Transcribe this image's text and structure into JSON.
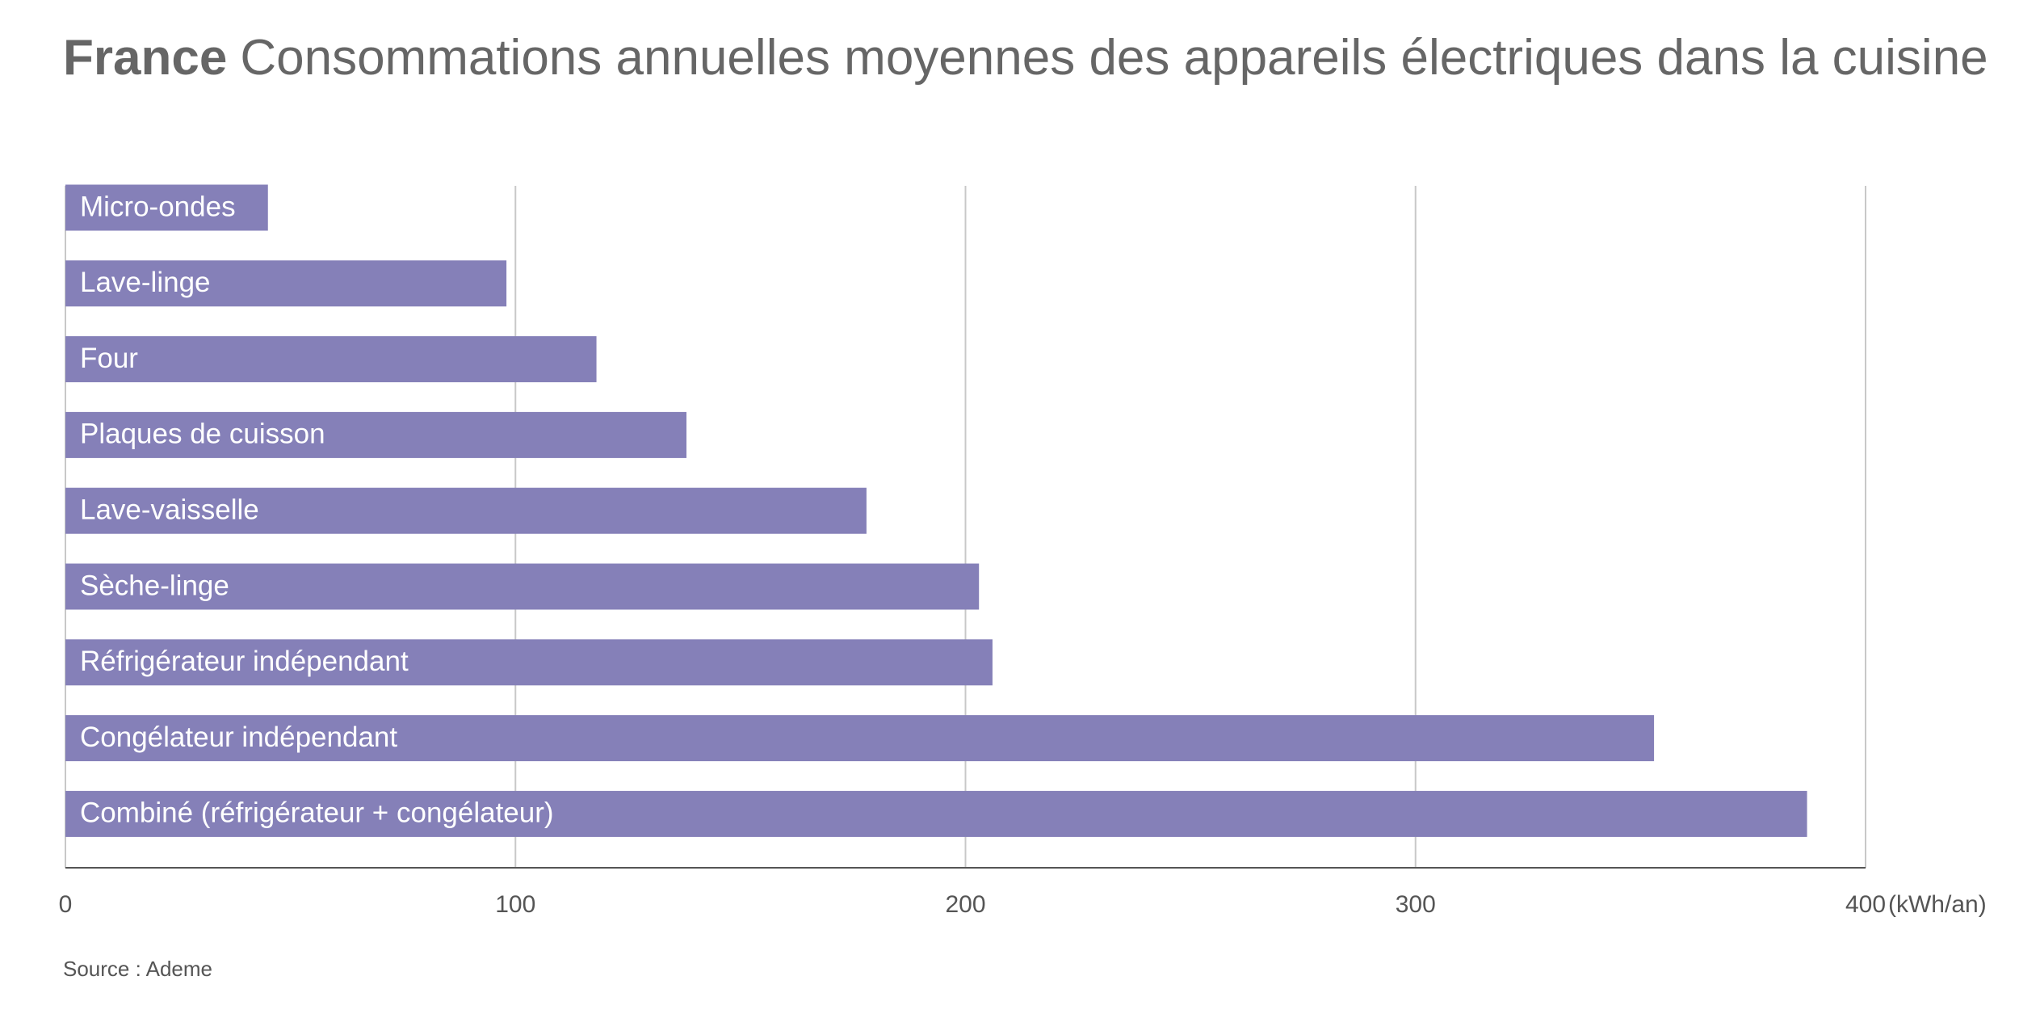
{
  "chart_data": {
    "type": "bar",
    "orientation": "horizontal",
    "title_bold": "France",
    "title": "Consommations annuelles moyennes des appareils électriques dans la cuisine",
    "categories": [
      "Micro-ondes",
      "Lave-linge",
      "Four",
      "Plaques de cuisson",
      "Lave-vaisselle",
      "Sèche-linge",
      "Réfrigérateur indépendant",
      "Congélateur indépendant",
      "Combiné (réfrigérateur + congélateur)"
    ],
    "values": [
      45,
      98,
      118,
      138,
      178,
      203,
      206,
      353,
      387
    ],
    "color": "#8580b8",
    "xlim": [
      0,
      400
    ],
    "xticks": [
      0,
      100,
      200,
      300,
      400
    ],
    "x_unit": "(kWh/an)",
    "grid": true,
    "source": "Source : Ademe"
  }
}
